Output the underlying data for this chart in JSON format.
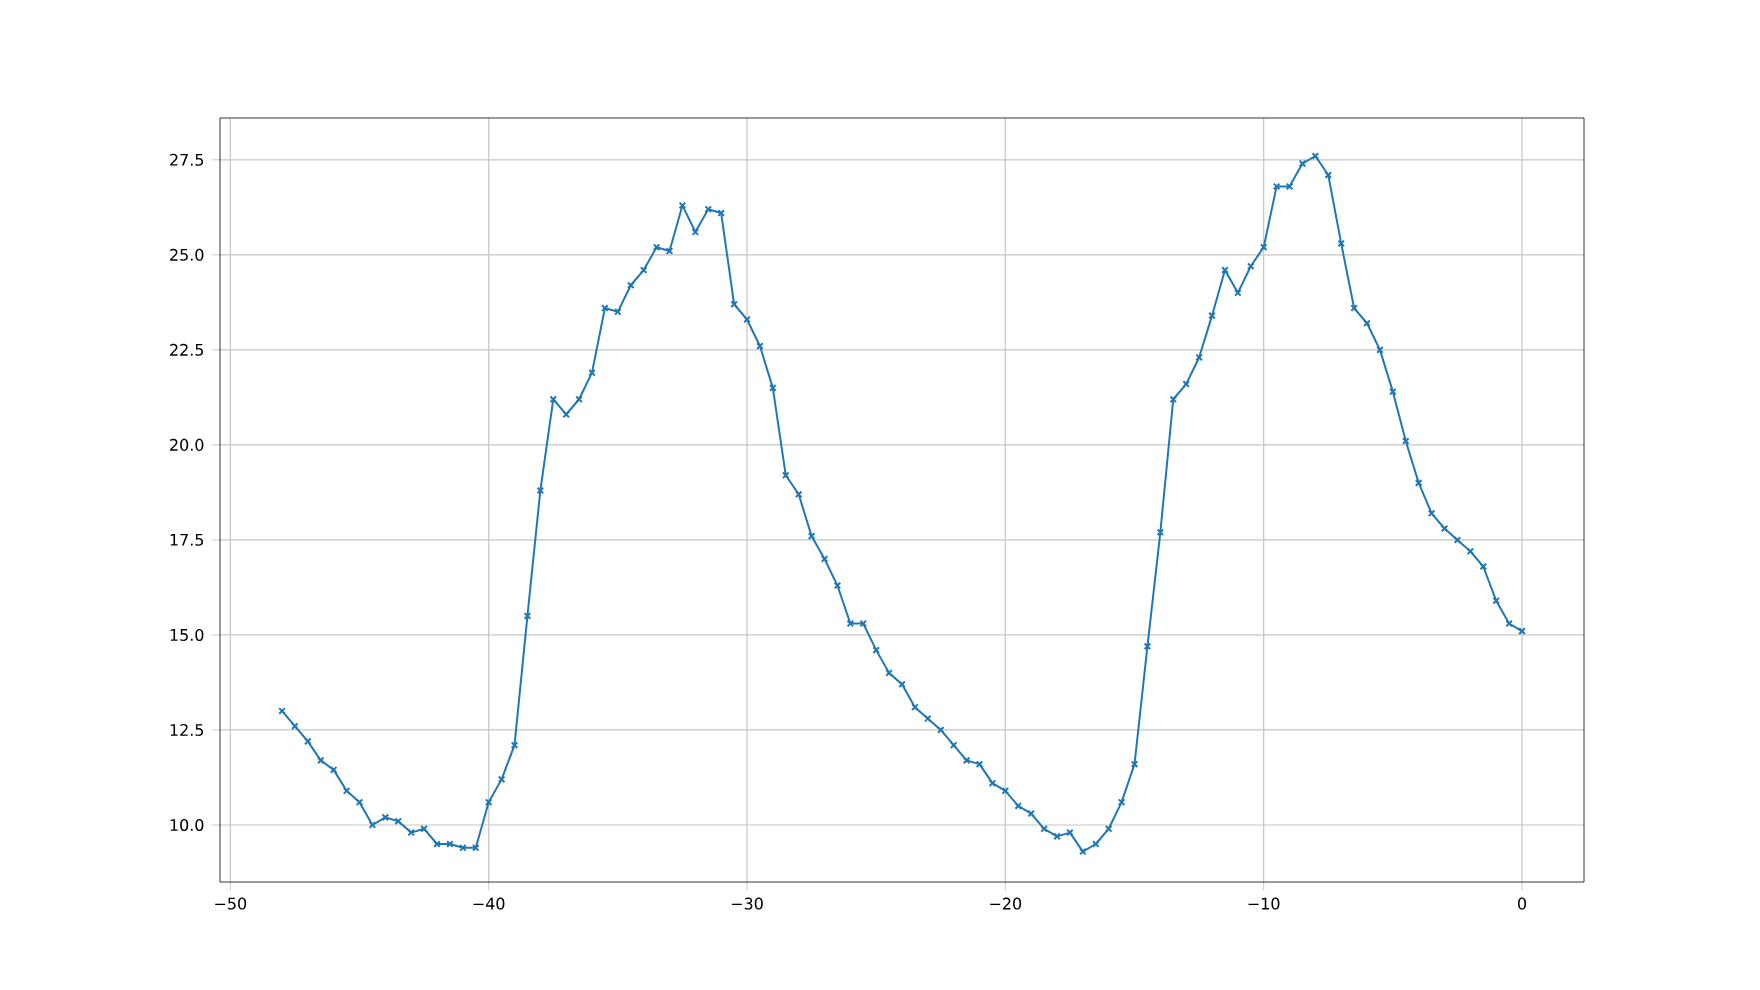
{
  "chart_data": {
    "type": "line",
    "x": [
      -48,
      -47.5,
      -47,
      -46.5,
      -46,
      -45.5,
      -45,
      -44.5,
      -44,
      -43.5,
      -43,
      -42.5,
      -42,
      -41.5,
      -41,
      -40.5,
      -40,
      -39.5,
      -39,
      -38.5,
      -38,
      -37.5,
      -37,
      -36.5,
      -36,
      -35.5,
      -35,
      -34.5,
      -34,
      -33.5,
      -33,
      -32.5,
      -32,
      -31.5,
      -31,
      -30.5,
      -30,
      -29.5,
      -29,
      -28.5,
      -28,
      -27.5,
      -27,
      -26.5,
      -26,
      -25.5,
      -25,
      -24.5,
      -24,
      -23.5,
      -23,
      -22.5,
      -22,
      -21.5,
      -21,
      -20.5,
      -20,
      -19.5,
      -19,
      -18.5,
      -18,
      -17.5,
      -17,
      -16.5,
      -16,
      -15.5,
      -15,
      -14.5,
      -14,
      -13.5,
      -13,
      -12.5,
      -12,
      -11.5,
      -11,
      -10.5,
      -10,
      -9.5,
      -9,
      -8.5,
      -8,
      -7.5,
      -7,
      -6.5,
      -6,
      -5.5,
      -5,
      -4.5,
      -4,
      -3.5,
      -3,
      -2.5,
      -2,
      -1.5,
      -1,
      -0.5,
      0
    ],
    "series": [
      {
        "color": "#1f77b4",
        "values": [
          13.0,
          12.6,
          12.2,
          11.7,
          11.45,
          10.9,
          10.6,
          10.0,
          10.2,
          10.1,
          9.8,
          9.9,
          9.5,
          9.5,
          9.4,
          9.4,
          10.6,
          11.2,
          12.1,
          15.5,
          18.8,
          21.2,
          20.8,
          21.2,
          21.9,
          23.6,
          23.5,
          24.2,
          24.6,
          25.2,
          25.1,
          26.3,
          25.6,
          26.2,
          26.1,
          23.7,
          23.3,
          22.6,
          21.5,
          19.2,
          18.7,
          17.6,
          17.0,
          16.3,
          15.3,
          15.3,
          14.6,
          14.0,
          13.7,
          13.1,
          12.8,
          12.5,
          12.1,
          11.7,
          11.6,
          11.1,
          10.9,
          10.5,
          10.3,
          9.9,
          9.7,
          9.8,
          9.3,
          9.5,
          9.9,
          10.6,
          11.6,
          14.7,
          17.7,
          21.2,
          21.6,
          22.3,
          23.4,
          24.6,
          24.0,
          24.7,
          25.2,
          26.8,
          26.8,
          27.4,
          27.6,
          27.1,
          25.3,
          23.6,
          23.2,
          22.5,
          21.4,
          20.1,
          19.0,
          18.2,
          17.8,
          17.5,
          17.2,
          16.8,
          15.9,
          15.3,
          15.1
        ]
      }
    ],
    "xlim": [
      -50.4,
      2.4
    ],
    "ylim": [
      8.5,
      28.6
    ],
    "xticks": [
      {
        "value": -50,
        "label": "−50"
      },
      {
        "value": -40,
        "label": "−40"
      },
      {
        "value": -30,
        "label": "−30"
      },
      {
        "value": -20,
        "label": "−20"
      },
      {
        "value": -10,
        "label": "−10"
      },
      0
    ],
    "yticks": [
      {
        "value": 10,
        "label": "10.0"
      },
      {
        "value": 12.5,
        "label": "12.5"
      },
      {
        "value": 15,
        "label": "15.0"
      },
      {
        "value": 17.5,
        "label": "17.5"
      },
      {
        "value": 20,
        "label": "20.0"
      },
      {
        "value": 22.5,
        "label": "22.5"
      },
      {
        "value": 25,
        "label": "25.0"
      },
      {
        "value": 27.5,
        "label": "27.5"
      }
    ],
    "grid": true,
    "marker": "cross",
    "line_style": "solid"
  }
}
